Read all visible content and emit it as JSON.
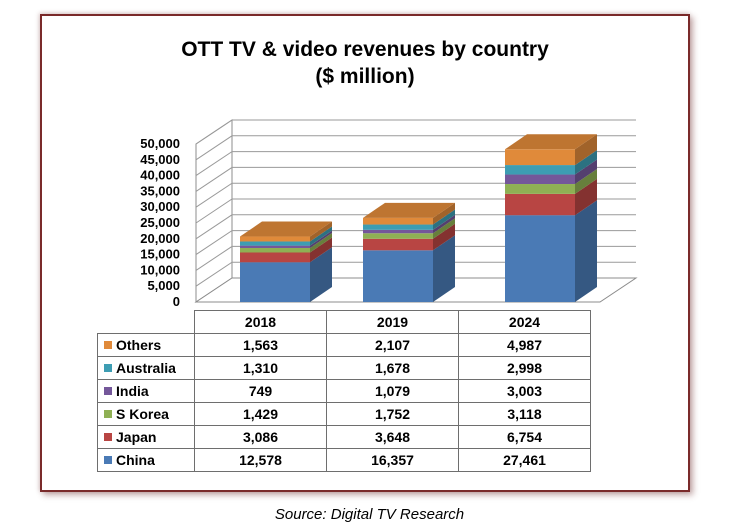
{
  "title_line1": "OTT TV & video revenues by country",
  "title_line2": "($ million)",
  "source": "Source: Digital TV Research",
  "chart_data": {
    "type": "bar",
    "stacked": true,
    "three_d": true,
    "categories": [
      "2018",
      "2019",
      "2024"
    ],
    "series": [
      {
        "name": "China",
        "color": "#4a7ab5",
        "values": [
          12578,
          16357,
          27461
        ]
      },
      {
        "name": "Japan",
        "color": "#b84543",
        "values": [
          3086,
          3648,
          6754
        ]
      },
      {
        "name": "S Korea",
        "color": "#8fb054",
        "values": [
          1429,
          1752,
          3118
        ]
      },
      {
        "name": "India",
        "color": "#74579a",
        "values": [
          749,
          1079,
          3003
        ]
      },
      {
        "name": "Australia",
        "color": "#3d9db3",
        "values": [
          1310,
          1678,
          2998
        ]
      },
      {
        "name": "Others",
        "color": "#e08a3a",
        "values": [
          1563,
          2107,
          4987
        ]
      }
    ],
    "value_labels": {
      "China": [
        "12,578",
        "16,357",
        "27,461"
      ],
      "Japan": [
        "3,086",
        "3,648",
        "6,754"
      ],
      "S Korea": [
        "1,429",
        "1,752",
        "3,118"
      ],
      "India": [
        "749",
        "1,079",
        "3,003"
      ],
      "Australia": [
        "1,310",
        "1,678",
        "2,998"
      ],
      "Others": [
        "1,563",
        "2,107",
        "4,987"
      ]
    },
    "ylim": [
      0,
      50000
    ],
    "yticks": [
      0,
      5000,
      10000,
      15000,
      20000,
      25000,
      30000,
      35000,
      40000,
      45000,
      50000
    ],
    "ytick_labels": [
      "0",
      "5,000",
      "10,000",
      "15,000",
      "20,000",
      "25,000",
      "30,000",
      "35,000",
      "40,000",
      "45,000",
      "50,000"
    ],
    "grid": true,
    "legend": "data table below chart"
  }
}
